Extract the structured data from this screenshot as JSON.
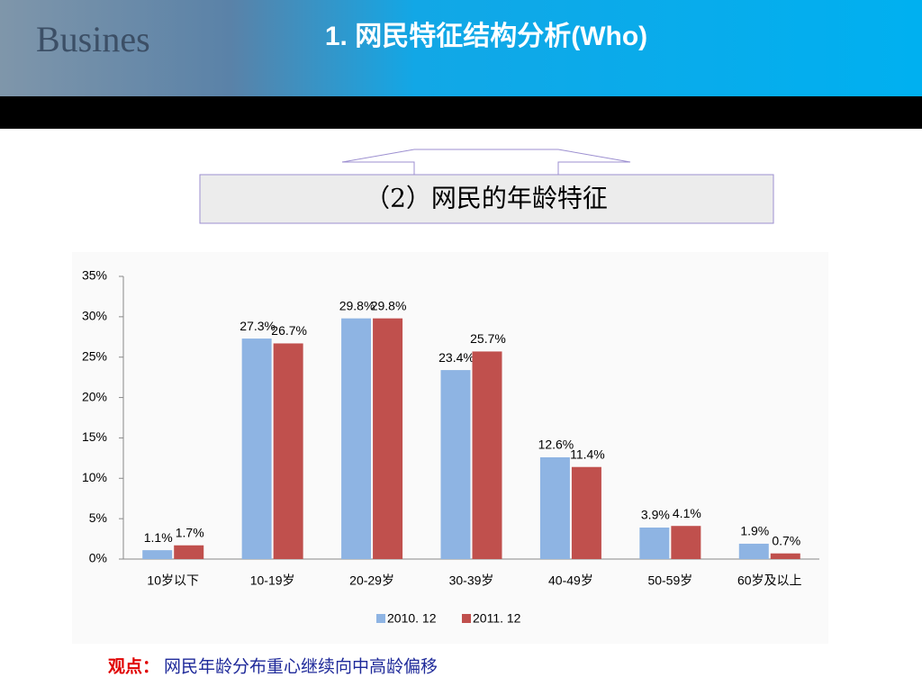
{
  "header": {
    "title": "1. 网民特征结构分析(Who)"
  },
  "subtitle": "（2）网民的年龄特征",
  "chart_data": {
    "type": "bar",
    "categories": [
      "10岁以下",
      "10-19岁",
      "20-29岁",
      "30-39岁",
      "40-49岁",
      "50-59岁",
      "60岁及以上"
    ],
    "series": [
      {
        "name": "2010. 12",
        "color": "#8eb4e3",
        "values": [
          1.1,
          27.3,
          29.8,
          23.4,
          12.6,
          3.9,
          1.9
        ],
        "value_labels": [
          "1.1%",
          "27.3%",
          "29.8%",
          "23.4%",
          "12.6%",
          "3.9%",
          "1.9%"
        ]
      },
      {
        "name": "2011. 12",
        "color": "#c0504d",
        "values": [
          1.7,
          26.7,
          29.8,
          25.7,
          11.4,
          4.1,
          0.7
        ],
        "value_labels": [
          "1.7%",
          "26.7%",
          "29.8%",
          "25.7%",
          "11.4%",
          "4.1%",
          "0.7%"
        ]
      }
    ],
    "ylim": [
      0,
      35
    ],
    "yticks": [
      {
        "value": 0,
        "label": "0%"
      },
      {
        "value": 5,
        "label": "5%"
      },
      {
        "value": 10,
        "label": "10%"
      },
      {
        "value": 15,
        "label": "15%"
      },
      {
        "value": 20,
        "label": "20%"
      },
      {
        "value": 25,
        "label": "25%"
      },
      {
        "value": 30,
        "label": "30%"
      },
      {
        "value": 35,
        "label": "35%"
      }
    ],
    "legend": "bottom"
  },
  "note": {
    "label": "观点：",
    "text": "网民年龄分布重心继续向中高龄偏移"
  }
}
